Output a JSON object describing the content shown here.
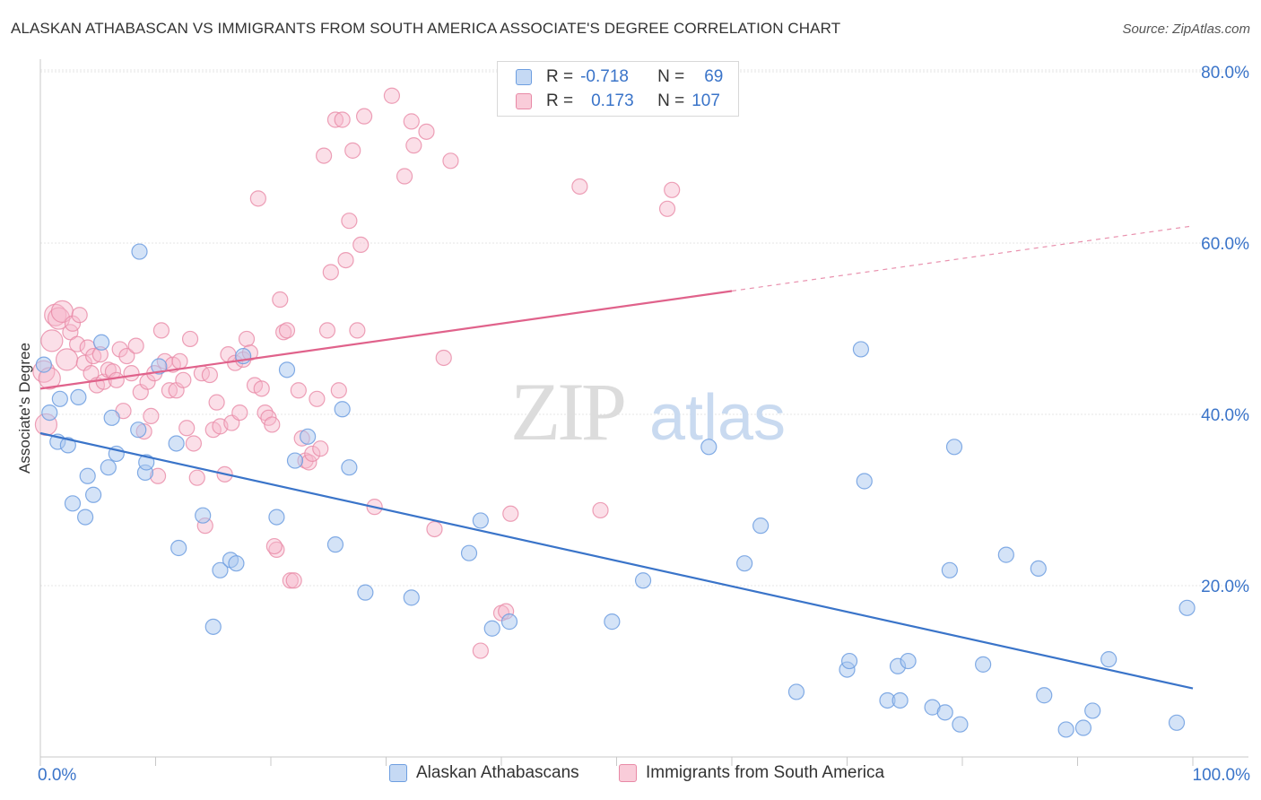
{
  "title": "ALASKAN ATHABASCAN VS IMMIGRANTS FROM SOUTH AMERICA ASSOCIATE'S DEGREE CORRELATION CHART",
  "source": "Source: ZipAtlas.com",
  "watermark": {
    "zip": "ZIP",
    "atlas": "atlas"
  },
  "legend": [
    {
      "r_label": "R =",
      "r_value": "-0.718",
      "n_label": "N =",
      "n_value": "69"
    },
    {
      "r_label": "R =",
      "r_value": "0.173",
      "n_label": "N =",
      "n_value": "107"
    }
  ],
  "colors": {
    "blue_fill": "#a9c7ef",
    "blue_stroke": "#6d9ee0",
    "blue_line": "#3a74c9",
    "pink_fill": "#f6b9cb",
    "pink_stroke": "#e889a6",
    "pink_line": "#e0628b",
    "axis_text": "#3a74c9",
    "grid": "#e6e6e6"
  },
  "chart_data": {
    "type": "scatter",
    "title": "ALASKAN ATHABASCAN VS IMMIGRANTS FROM SOUTH AMERICA ASSOCIATE'S DEGREE CORRELATION CHART",
    "xlabel": "",
    "ylabel": "Associate's Degree",
    "xlim": [
      0,
      100
    ],
    "ylim": [
      0,
      85
    ],
    "x_tick_labels": [
      "0.0%",
      "100.0%"
    ],
    "y_ticks": [
      20,
      40,
      60,
      80
    ],
    "y_tick_labels": [
      "20.0%",
      "40.0%",
      "60.0%",
      "80.0%"
    ],
    "grid": true,
    "legend_placement": "top-center",
    "series": [
      {
        "name": "Alaskan Athabascans",
        "color": "#a9c7ef",
        "r": -0.718,
        "n": 69,
        "trend": {
          "x": [
            0,
            100
          ],
          "y": [
            37.8,
            8.0
          ],
          "dashed_from": null
        },
        "points": [
          [
            0.3,
            45.8
          ],
          [
            0.8,
            40.2
          ],
          [
            1.5,
            36.8
          ],
          [
            1.7,
            41.8
          ],
          [
            2.4,
            36.4
          ],
          [
            2.8,
            29.6
          ],
          [
            3.3,
            42.0
          ],
          [
            3.9,
            28.0
          ],
          [
            4.1,
            32.8
          ],
          [
            4.6,
            30.6
          ],
          [
            5.3,
            48.4
          ],
          [
            5.9,
            33.8
          ],
          [
            6.2,
            39.6
          ],
          [
            6.6,
            35.4
          ],
          [
            8.5,
            38.2
          ],
          [
            8.6,
            59.0
          ],
          [
            9.1,
            33.2
          ],
          [
            9.2,
            34.4
          ],
          [
            10.3,
            45.6
          ],
          [
            11.8,
            36.6
          ],
          [
            12.0,
            24.4
          ],
          [
            14.1,
            28.2
          ],
          [
            15.0,
            15.2
          ],
          [
            15.6,
            21.8
          ],
          [
            16.5,
            23.0
          ],
          [
            17.0,
            22.6
          ],
          [
            17.6,
            46.8
          ],
          [
            20.5,
            28.0
          ],
          [
            21.4,
            45.2
          ],
          [
            22.1,
            34.6
          ],
          [
            23.2,
            37.4
          ],
          [
            25.6,
            24.8
          ],
          [
            26.2,
            40.6
          ],
          [
            26.8,
            33.8
          ],
          [
            28.2,
            19.2
          ],
          [
            32.2,
            18.6
          ],
          [
            37.2,
            23.8
          ],
          [
            38.2,
            27.6
          ],
          [
            39.2,
            15.0
          ],
          [
            40.7,
            15.8
          ],
          [
            49.6,
            15.8
          ],
          [
            52.3,
            20.6
          ],
          [
            58.0,
            36.2
          ],
          [
            61.1,
            22.6
          ],
          [
            62.5,
            27.0
          ],
          [
            65.6,
            7.6
          ],
          [
            70.0,
            10.2
          ],
          [
            70.2,
            11.2
          ],
          [
            71.2,
            47.6
          ],
          [
            71.5,
            32.2
          ],
          [
            73.5,
            6.6
          ],
          [
            74.4,
            10.6
          ],
          [
            74.6,
            6.6
          ],
          [
            75.3,
            11.2
          ],
          [
            77.4,
            5.8
          ],
          [
            78.5,
            5.2
          ],
          [
            78.9,
            21.8
          ],
          [
            79.3,
            36.2
          ],
          [
            79.8,
            3.8
          ],
          [
            81.8,
            10.8
          ],
          [
            83.8,
            23.6
          ],
          [
            86.6,
            22.0
          ],
          [
            87.1,
            7.2
          ],
          [
            89.0,
            3.2
          ],
          [
            90.5,
            3.4
          ],
          [
            91.3,
            5.4
          ],
          [
            92.7,
            11.4
          ],
          [
            98.6,
            4.0
          ],
          [
            99.5,
            17.4
          ]
        ]
      },
      {
        "name": "Immigrants from South America",
        "color": "#f6b9cb",
        "r": 0.173,
        "n": 107,
        "trend": {
          "x": [
            0,
            100
          ],
          "y": [
            43.0,
            62.0
          ],
          "dashed_from": 60
        },
        "points": [
          [
            0.3,
            45.0
          ],
          [
            0.5,
            38.8
          ],
          [
            0.8,
            44.2
          ],
          [
            1.0,
            48.6
          ],
          [
            1.3,
            51.6
          ],
          [
            1.6,
            51.2
          ],
          [
            1.9,
            52.0
          ],
          [
            2.3,
            46.4
          ],
          [
            2.6,
            49.6
          ],
          [
            2.8,
            50.6
          ],
          [
            3.2,
            48.2
          ],
          [
            3.4,
            51.6
          ],
          [
            3.8,
            46.0
          ],
          [
            4.1,
            47.8
          ],
          [
            4.4,
            44.8
          ],
          [
            4.6,
            46.8
          ],
          [
            4.9,
            43.4
          ],
          [
            5.2,
            47.0
          ],
          [
            5.5,
            43.8
          ],
          [
            5.9,
            45.2
          ],
          [
            6.3,
            45.0
          ],
          [
            6.6,
            44.0
          ],
          [
            6.9,
            47.6
          ],
          [
            7.2,
            40.4
          ],
          [
            7.5,
            46.8
          ],
          [
            7.9,
            44.8
          ],
          [
            8.3,
            48.0
          ],
          [
            8.7,
            42.6
          ],
          [
            9.0,
            38.0
          ],
          [
            9.3,
            43.8
          ],
          [
            9.6,
            39.8
          ],
          [
            9.9,
            44.8
          ],
          [
            10.2,
            32.8
          ],
          [
            10.5,
            49.8
          ],
          [
            10.8,
            46.2
          ],
          [
            11.2,
            42.8
          ],
          [
            11.5,
            45.8
          ],
          [
            11.8,
            42.8
          ],
          [
            12.1,
            46.2
          ],
          [
            12.4,
            44.0
          ],
          [
            12.7,
            38.4
          ],
          [
            13.0,
            48.8
          ],
          [
            13.3,
            36.6
          ],
          [
            13.6,
            32.6
          ],
          [
            14.0,
            44.8
          ],
          [
            14.3,
            27.0
          ],
          [
            14.7,
            44.6
          ],
          [
            15.0,
            38.2
          ],
          [
            15.3,
            41.4
          ],
          [
            15.6,
            38.6
          ],
          [
            16.0,
            33.0
          ],
          [
            16.3,
            47.0
          ],
          [
            16.6,
            39.0
          ],
          [
            16.9,
            46.0
          ],
          [
            17.3,
            40.2
          ],
          [
            17.6,
            46.4
          ],
          [
            17.9,
            48.8
          ],
          [
            18.2,
            47.2
          ],
          [
            18.6,
            43.4
          ],
          [
            18.9,
            65.2
          ],
          [
            19.2,
            43.0
          ],
          [
            19.5,
            40.2
          ],
          [
            19.8,
            39.6
          ],
          [
            20.1,
            38.8
          ],
          [
            20.5,
            24.2
          ],
          [
            20.8,
            53.4
          ],
          [
            21.1,
            49.6
          ],
          [
            21.4,
            49.8
          ],
          [
            21.7,
            20.6
          ],
          [
            22.0,
            20.6
          ],
          [
            22.4,
            42.8
          ],
          [
            22.7,
            37.2
          ],
          [
            23.0,
            34.6
          ],
          [
            23.3,
            34.4
          ],
          [
            23.6,
            35.4
          ],
          [
            24.0,
            41.8
          ],
          [
            24.3,
            36.0
          ],
          [
            24.6,
            70.2
          ],
          [
            24.9,
            49.8
          ],
          [
            25.2,
            56.6
          ],
          [
            25.6,
            74.4
          ],
          [
            25.9,
            42.8
          ],
          [
            26.2,
            74.4
          ],
          [
            26.5,
            58.0
          ],
          [
            26.8,
            62.6
          ],
          [
            27.1,
            70.8
          ],
          [
            27.5,
            49.8
          ],
          [
            27.8,
            59.8
          ],
          [
            28.1,
            74.8
          ],
          [
            29.0,
            29.2
          ],
          [
            30.5,
            77.2
          ],
          [
            31.6,
            67.8
          ],
          [
            32.2,
            74.2
          ],
          [
            32.4,
            71.4
          ],
          [
            33.5,
            73.0
          ],
          [
            34.2,
            26.6
          ],
          [
            35.0,
            46.6
          ],
          [
            35.6,
            69.6
          ],
          [
            38.2,
            12.4
          ],
          [
            40.0,
            16.8
          ],
          [
            40.8,
            28.4
          ],
          [
            46.8,
            66.6
          ],
          [
            48.6,
            28.8
          ],
          [
            54.4,
            64.0
          ],
          [
            54.8,
            66.2
          ],
          [
            40.4,
            17.0
          ],
          [
            20.3,
            24.6
          ]
        ]
      }
    ]
  }
}
